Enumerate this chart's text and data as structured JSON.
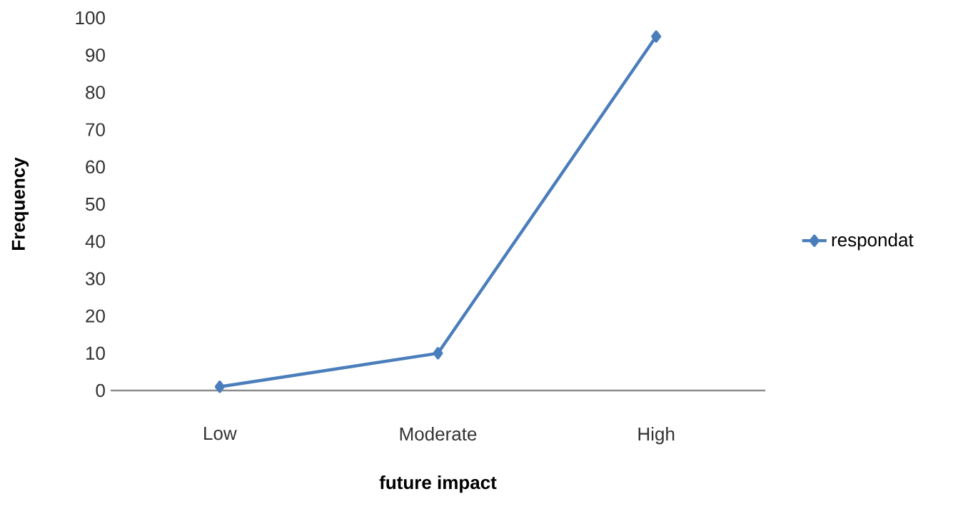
{
  "chart_data": {
    "type": "line",
    "xlabel": "future impact",
    "ylabel": "Frequency",
    "categories": [
      "Low",
      "Moderate",
      "High"
    ],
    "series": [
      {
        "name": "respondat",
        "color": "#4a7ebb",
        "values": [
          1,
          10,
          95
        ]
      }
    ],
    "ylim": [
      0,
      100
    ],
    "yticks": [
      0,
      10,
      20,
      30,
      40,
      50,
      60,
      70,
      80,
      90,
      100
    ],
    "grid": false,
    "legend": "right",
    "marker": "diamond",
    "line_style": "solid"
  }
}
